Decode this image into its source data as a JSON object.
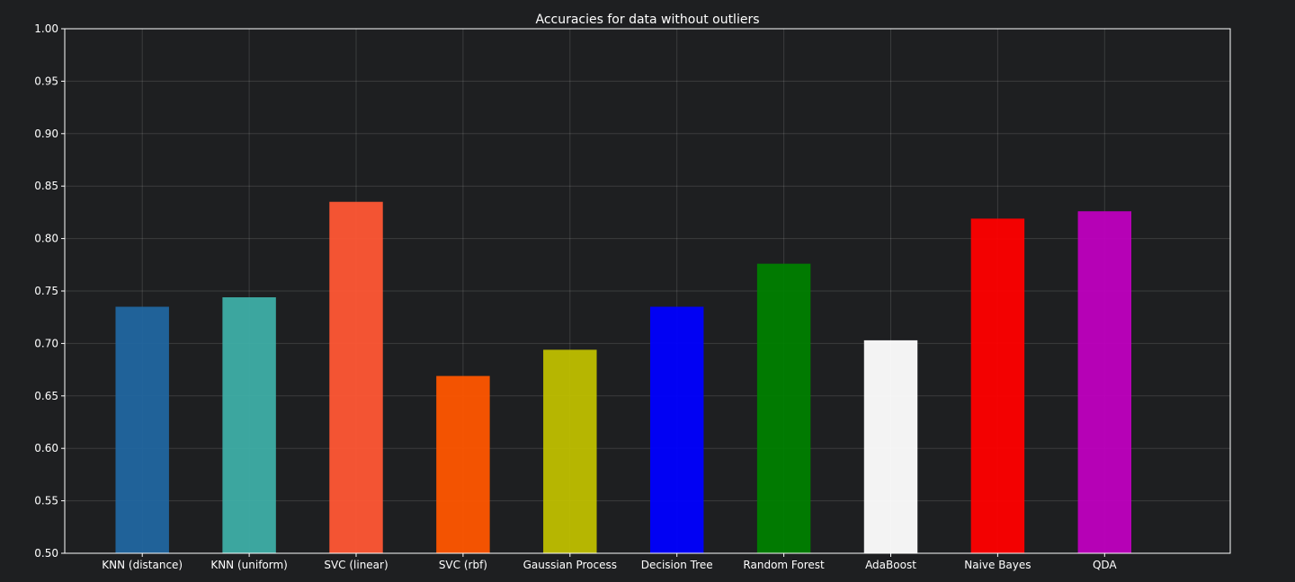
{
  "chart_data": {
    "type": "bar",
    "title": "Accuracies for data without outliers",
    "xlabel": "",
    "ylabel": "",
    "ylim": [
      0.5,
      1.0
    ],
    "yticks": [
      "0.50",
      "0.55",
      "0.60",
      "0.65",
      "0.70",
      "0.75",
      "0.80",
      "0.85",
      "0.90",
      "0.95",
      "1.00"
    ],
    "grid": true,
    "categories": [
      "KNN (distance)",
      "KNN (uniform)",
      "SVC (linear)",
      "SVC (rbf)",
      "Gaussian Process",
      "Decision Tree",
      "Random Forest",
      "AdaBoost",
      "Naive Bayes",
      "QDA"
    ],
    "values": [
      0.735,
      0.744,
      0.835,
      0.669,
      0.694,
      0.735,
      0.776,
      0.703,
      0.819,
      0.826
    ],
    "colors": [
      "#2166a0",
      "#3eaea6",
      "#ff5735",
      "#ff5600",
      "#bfbf00",
      "#0000ff",
      "#008000",
      "#ffffff",
      "#ff0000",
      "#bf00bf"
    ]
  }
}
